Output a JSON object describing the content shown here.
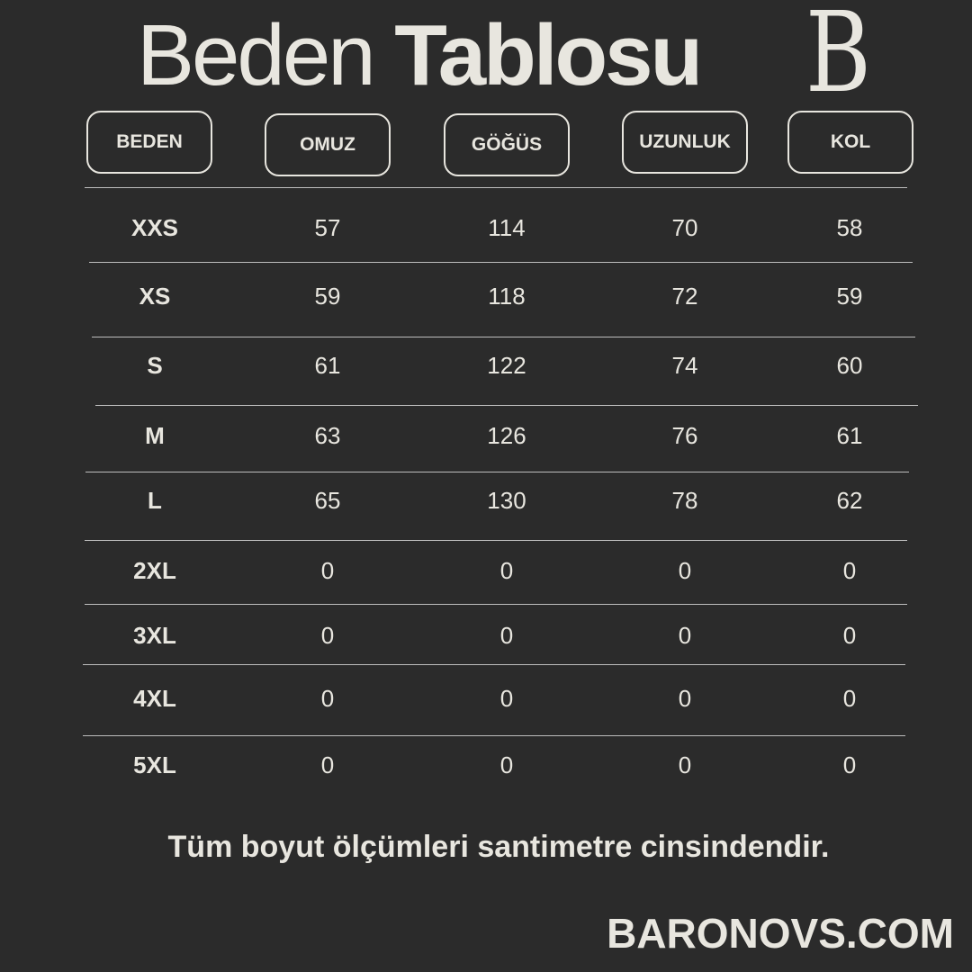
{
  "title": {
    "light": "Beden",
    "bold": "Tablosu"
  },
  "logo": "B",
  "headers": [
    "BEDEN",
    "OMUZ",
    "GÖĞÜS",
    "UZUNLUK",
    "KOL"
  ],
  "rows": [
    [
      "XXS",
      "57",
      "114",
      "70",
      "58"
    ],
    [
      "XS",
      "59",
      "118",
      "72",
      "59"
    ],
    [
      "S",
      "61",
      "122",
      "74",
      "60"
    ],
    [
      "M",
      "63",
      "126",
      "76",
      "61"
    ],
    [
      "L",
      "65",
      "130",
      "78",
      "62"
    ],
    [
      "2XL",
      "0",
      "0",
      "0",
      "0"
    ],
    [
      "3XL",
      "0",
      "0",
      "0",
      "0"
    ],
    [
      "4XL",
      "0",
      "0",
      "0",
      "0"
    ],
    [
      "5XL",
      "0",
      "0",
      "0",
      "0"
    ]
  ],
  "note": "Tüm boyut ölçümleri santimetre cinsindendir.",
  "brand": "BARONOVS.COM",
  "colors": {
    "background": "#2b2b2b",
    "text": "#e8e6df",
    "divider": "#bdbdbd"
  }
}
